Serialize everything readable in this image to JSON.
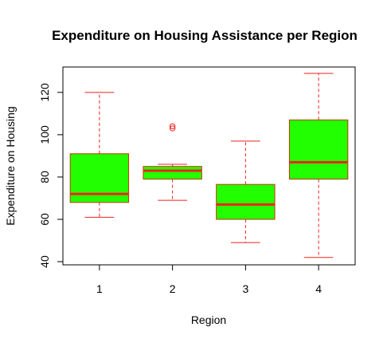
{
  "chart_data": {
    "type": "boxplot",
    "title": "Expenditure on Housing Assistance per Region",
    "xlabel": "Region",
    "ylabel": "Expenditure on Housing",
    "categories": [
      "1",
      "2",
      "3",
      "4"
    ],
    "y_ticks": [
      40,
      60,
      80,
      100,
      120
    ],
    "y_tick_labels": [
      "40",
      "60",
      "80",
      "100",
      "120"
    ],
    "ylim": [
      38.5,
      132
    ],
    "grid": false,
    "box_fill_color": "#22ff00",
    "border_color": "#cc3300",
    "median_color": "#ee2222",
    "whisker_color": "#ee2222",
    "outlier_color": "#ee2222",
    "boxes": [
      {
        "category": "1",
        "min": 61,
        "q1": 68,
        "median": 72,
        "q3": 91,
        "max": 120,
        "outliers": []
      },
      {
        "category": "2",
        "min": 69,
        "q1": 79,
        "median": 83,
        "q3": 85,
        "max": 86,
        "outliers": [
          103,
          104
        ]
      },
      {
        "category": "3",
        "min": 49,
        "q1": 60,
        "median": 67,
        "q3": 76.5,
        "max": 97,
        "outliers": []
      },
      {
        "category": "4",
        "min": 42,
        "q1": 79,
        "median": 87,
        "q3": 107,
        "max": 129,
        "outliers": []
      }
    ]
  }
}
